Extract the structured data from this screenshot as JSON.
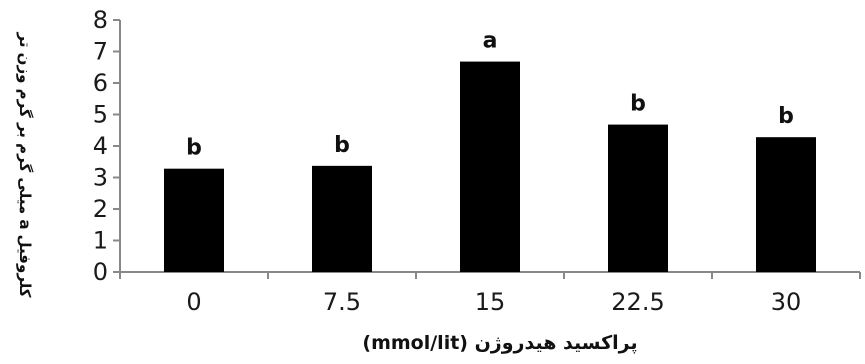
{
  "chart_data": {
    "type": "bar",
    "categories": [
      "0",
      "7.5",
      "15",
      "22.5",
      "30"
    ],
    "values": [
      3.28,
      3.37,
      6.68,
      4.68,
      4.28
    ],
    "significance_letters": [
      "b",
      "b",
      "a",
      "b",
      "b"
    ],
    "title": "",
    "xlabel": "پراکسید هیدروژن (mmol/lit)",
    "ylabel": "کلروفیل a میلی گرم بر گرم وزن تر",
    "ylim": [
      0,
      8
    ],
    "yticks": [
      0,
      1,
      2,
      3,
      4,
      5,
      6,
      7,
      8
    ],
    "grid": false,
    "legend": "none",
    "bar_color": "#000000"
  }
}
